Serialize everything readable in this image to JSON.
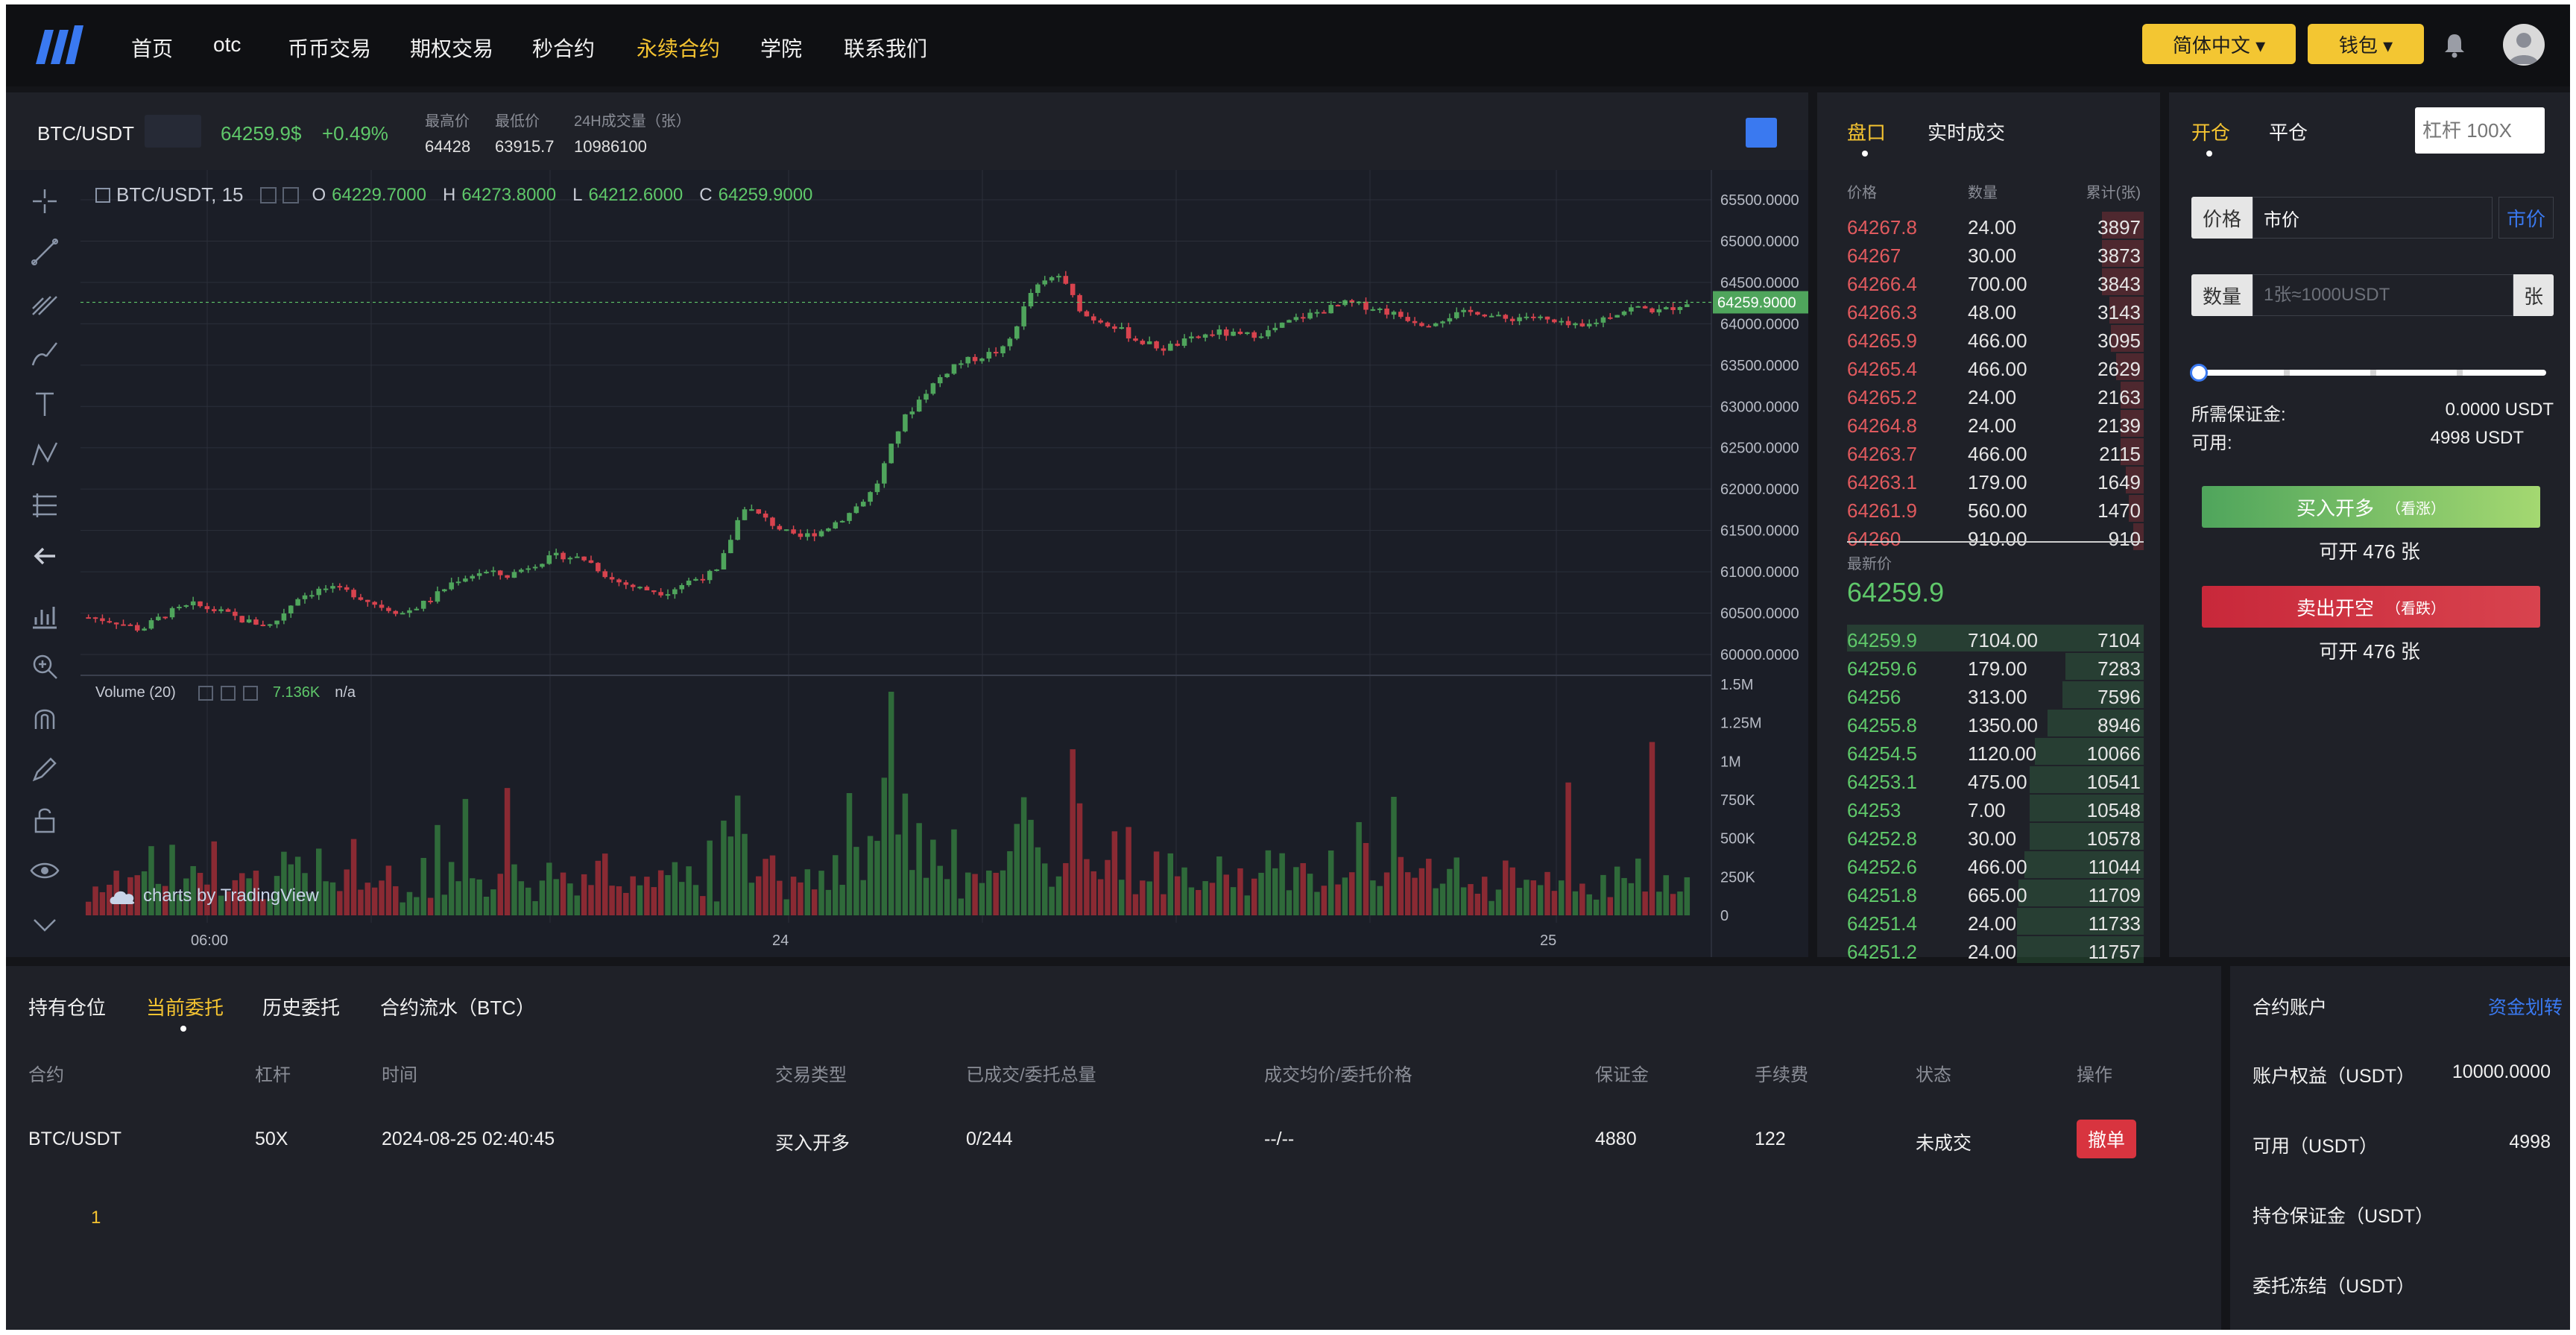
{
  "nav": {
    "items": [
      "首页",
      "otc",
      "币币交易",
      "期权交易",
      "秒合约",
      "永续合约",
      "学院",
      "联系我们"
    ],
    "active_index": 5,
    "language_label": "简体中文 ▾",
    "wallet_label": "钱包 ▾"
  },
  "colors": {
    "accent": "#f5c431",
    "up": "#5fc86a",
    "down": "#e05a5e",
    "link": "#3a79f0"
  },
  "ticker": {
    "pair": "BTC/USDT",
    "price": "64259.9$",
    "change": "+0.49%",
    "high_label": "最高价",
    "high": "64428",
    "low_label": "最低价",
    "low": "63915.7",
    "volume_label": "24H成交量（张）",
    "volume": "10986100"
  },
  "chart": {
    "legend_symbol": "BTC/USDT, 15",
    "ohlc": {
      "o_label": "O",
      "o": "64229.7000",
      "h_label": "H",
      "h": "64273.8000",
      "l_label": "L",
      "l": "64212.6000",
      "c_label": "C",
      "c": "64259.9000"
    },
    "volume_label": "Volume (20)",
    "volume_value": "7.136K",
    "volume_na": "n/a",
    "watermark": "charts by TradingView",
    "last_price_tag": "64259.9000"
  },
  "chart_data": {
    "type": "candlestick",
    "price_axis": [
      "65500.0000",
      "65000.0000",
      "64500.0000",
      "64000.0000",
      "63500.0000",
      "63000.0000",
      "62500.0000",
      "62000.0000",
      "61500.0000",
      "61000.0000",
      "60500.0000",
      "60000.0000"
    ],
    "ylim": [
      60000,
      65500
    ],
    "volume_axis": [
      "1.5M",
      "1.25M",
      "1M",
      "750K",
      "500K",
      "250K",
      "0"
    ],
    "time_axis": [
      "06:00",
      "24",
      "25"
    ],
    "close_trend": [
      60450,
      60400,
      60300,
      60500,
      60600,
      60520,
      60400,
      60350,
      60700,
      60800,
      60750,
      60600,
      60500,
      60650,
      60900,
      61000,
      60950,
      61100,
      61200,
      61150,
      60900,
      60800,
      60750,
      60900,
      61000,
      61800,
      61600,
      61400,
      61500,
      61700,
      62000,
      62800,
      63200,
      63500,
      63600,
      63700,
      64400,
      64600,
      64100,
      64000,
      63800,
      63700,
      63800,
      63900,
      63850,
      63900,
      64050,
      64150,
      64250,
      64200,
      64100,
      64000,
      64100,
      64150,
      64050,
      64100,
      64000,
      63950,
      64100,
      64200,
      64150,
      64259.9
    ]
  },
  "order_book": {
    "tab_book": "盘口",
    "tab_trades": "实时成交",
    "hdr_price": "价格",
    "hdr_qty": "数量",
    "hdr_total": "累计(张)",
    "asks": [
      {
        "price": "64267.8",
        "qty": "24.00",
        "total": "3897",
        "depth": 0.33
      },
      {
        "price": "64267",
        "qty": "30.00",
        "total": "3873",
        "depth": 0.33
      },
      {
        "price": "64266.4",
        "qty": "700.00",
        "total": "3843",
        "depth": 0.33
      },
      {
        "price": "64266.3",
        "qty": "48.00",
        "total": "3143",
        "depth": 0.27
      },
      {
        "price": "64265.9",
        "qty": "466.00",
        "total": "3095",
        "depth": 0.26
      },
      {
        "price": "64265.4",
        "qty": "466.00",
        "total": "2629",
        "depth": 0.22
      },
      {
        "price": "64265.2",
        "qty": "24.00",
        "total": "2163",
        "depth": 0.18
      },
      {
        "price": "64264.8",
        "qty": "24.00",
        "total": "2139",
        "depth": 0.18
      },
      {
        "price": "64263.7",
        "qty": "466.00",
        "total": "2115",
        "depth": 0.18
      },
      {
        "price": "64263.1",
        "qty": "179.00",
        "total": "1649",
        "depth": 0.14
      },
      {
        "price": "64261.9",
        "qty": "560.00",
        "total": "1470",
        "depth": 0.12
      },
      {
        "price": "64260",
        "qty": "910.00",
        "total": "910",
        "depth": 0.08
      }
    ],
    "last_label": "最新价",
    "last_price": "64259.9",
    "bids": [
      {
        "price": "64259.9",
        "qty": "7104.00",
        "total": "7104",
        "depth": 0.6
      },
      {
        "price": "64259.6",
        "qty": "179.00",
        "total": "7283",
        "depth": 0.62
      },
      {
        "price": "64256",
        "qty": "313.00",
        "total": "7596",
        "depth": 0.64
      },
      {
        "price": "64255.8",
        "qty": "1350.00",
        "total": "8946",
        "depth": 0.76
      },
      {
        "price": "64254.5",
        "qty": "1120.00",
        "total": "10066",
        "depth": 0.86
      },
      {
        "price": "64253.1",
        "qty": "475.00",
        "total": "10541",
        "depth": 0.9
      },
      {
        "price": "64253",
        "qty": "7.00",
        "total": "10548",
        "depth": 0.9
      },
      {
        "price": "64252.8",
        "qty": "30.00",
        "total": "10578",
        "depth": 0.9
      },
      {
        "price": "64252.6",
        "qty": "466.00",
        "total": "11044",
        "depth": 0.94
      },
      {
        "price": "64251.8",
        "qty": "665.00",
        "total": "11709",
        "depth": 0.99
      },
      {
        "price": "64251.4",
        "qty": "24.00",
        "total": "11733",
        "depth": 1.0
      },
      {
        "price": "64251.2",
        "qty": "24.00",
        "total": "11757",
        "depth": 1.0
      }
    ]
  },
  "trade": {
    "tab_open": "开仓",
    "tab_close": "平仓",
    "leverage_placeholder": "杠杆 100X",
    "price_label": "价格",
    "price_value": "市价",
    "market_btn": "市价",
    "qty_label": "数量",
    "qty_placeholder": "1张≈1000USDT",
    "qty_unit": "张",
    "slider_value": 0,
    "margin_label": "所需保证金:",
    "margin_value": "0.0000 USDT",
    "available_label": "可用:",
    "available_value": "4998 USDT",
    "buy_label": "买入开多",
    "buy_sub": "（看涨）",
    "buy_can_open": "可开 476 张",
    "sell_label": "卖出开空",
    "sell_sub": "（看跌）",
    "sell_can_open": "可开 476 张"
  },
  "orders": {
    "tabs": [
      "持有仓位",
      "当前委托",
      "历史委托",
      "合约流水（BTC）"
    ],
    "active_tab": 1,
    "columns": [
      "合约",
      "杠杆",
      "时间",
      "交易类型",
      "已成交/委托总量",
      "成交均价/委托价格",
      "保证金",
      "手续费",
      "状态",
      "操作"
    ],
    "rows": [
      {
        "contract": "BTC/USDT",
        "leverage": "50X",
        "time": "2024-08-25 02:40:45",
        "type": "买入开多",
        "filled": "0/244",
        "avg_price": "--/--",
        "margin": "4880",
        "fee": "122",
        "status": "未成交",
        "action": "撤单"
      }
    ],
    "page": "1"
  },
  "account": {
    "title": "合约账户",
    "transfer_link": "资金划转",
    "equity_label": "账户权益（USDT）",
    "equity_value": "10000.0000",
    "available_label": "可用（USDT）",
    "available_value": "4998",
    "position_margin_label": "持仓保证金（USDT）",
    "order_frozen_label": "委托冻结（USDT）"
  }
}
